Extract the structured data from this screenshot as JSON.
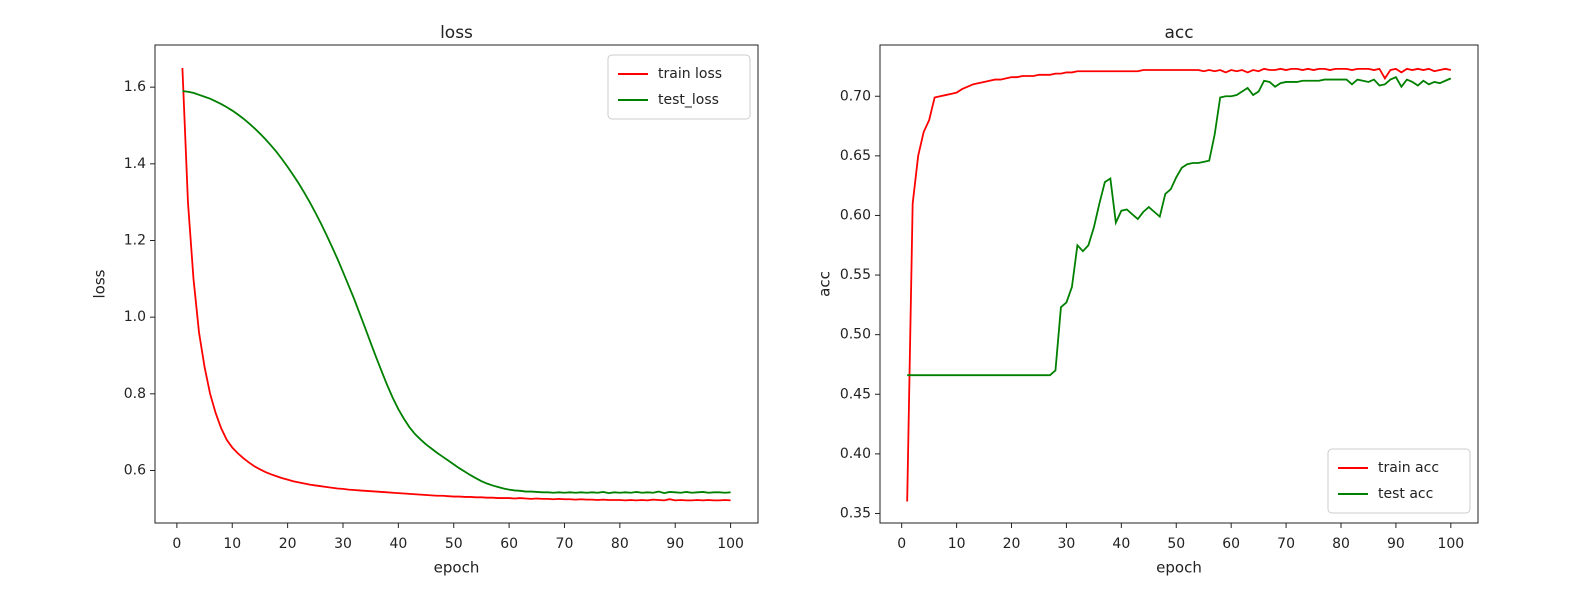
{
  "chart_data": [
    {
      "type": "line",
      "title": "loss",
      "xlabel": "epoch",
      "ylabel": "loss",
      "x": [
        1,
        2,
        3,
        4,
        5,
        6,
        7,
        8,
        9,
        10,
        11,
        12,
        13,
        14,
        15,
        16,
        17,
        18,
        19,
        20,
        21,
        22,
        23,
        24,
        25,
        26,
        27,
        28,
        29,
        30,
        31,
        32,
        33,
        34,
        35,
        36,
        37,
        38,
        39,
        40,
        41,
        42,
        43,
        44,
        45,
        46,
        47,
        48,
        49,
        50,
        51,
        52,
        53,
        54,
        55,
        56,
        57,
        58,
        59,
        60,
        61,
        62,
        63,
        64,
        65,
        66,
        67,
        68,
        69,
        70,
        71,
        72,
        73,
        74,
        75,
        76,
        77,
        78,
        79,
        80,
        81,
        82,
        83,
        84,
        85,
        86,
        87,
        88,
        89,
        90,
        91,
        92,
        93,
        94,
        95,
        96,
        97,
        98,
        99,
        100
      ],
      "series": [
        {
          "name": "train loss",
          "color": "#ff0000",
          "values": [
            1.65,
            1.3,
            1.1,
            0.96,
            0.87,
            0.8,
            0.75,
            0.71,
            0.68,
            0.66,
            0.645,
            0.632,
            0.621,
            0.611,
            0.603,
            0.596,
            0.59,
            0.585,
            0.58,
            0.576,
            0.572,
            0.569,
            0.566,
            0.563,
            0.561,
            0.559,
            0.557,
            0.555,
            0.553,
            0.552,
            0.55,
            0.549,
            0.548,
            0.547,
            0.546,
            0.545,
            0.544,
            0.543,
            0.542,
            0.541,
            0.54,
            0.539,
            0.538,
            0.537,
            0.536,
            0.535,
            0.534,
            0.534,
            0.533,
            0.532,
            0.532,
            0.531,
            0.531,
            0.53,
            0.53,
            0.529,
            0.529,
            0.528,
            0.528,
            0.528,
            0.527,
            0.528,
            0.527,
            0.526,
            0.527,
            0.526,
            0.526,
            0.525,
            0.526,
            0.525,
            0.525,
            0.524,
            0.525,
            0.524,
            0.524,
            0.523,
            0.524,
            0.523,
            0.523,
            0.523,
            0.522,
            0.523,
            0.522,
            0.523,
            0.522,
            0.524,
            0.523,
            0.522,
            0.525,
            0.522,
            0.523,
            0.522,
            0.522,
            0.523,
            0.522,
            0.523,
            0.522,
            0.522,
            0.523,
            0.522
          ]
        },
        {
          "name": "test_loss",
          "color": "#008000",
          "values": [
            1.59,
            1.588,
            1.585,
            1.58,
            1.575,
            1.57,
            1.563,
            1.556,
            1.548,
            1.539,
            1.529,
            1.518,
            1.506,
            1.493,
            1.479,
            1.464,
            1.448,
            1.431,
            1.412,
            1.392,
            1.371,
            1.349,
            1.325,
            1.3,
            1.273,
            1.245,
            1.215,
            1.184,
            1.152,
            1.118,
            1.083,
            1.048,
            1.01,
            0.972,
            0.933,
            0.895,
            0.858,
            0.822,
            0.789,
            0.76,
            0.735,
            0.713,
            0.695,
            0.681,
            0.668,
            0.657,
            0.646,
            0.636,
            0.626,
            0.616,
            0.606,
            0.597,
            0.588,
            0.58,
            0.572,
            0.566,
            0.561,
            0.557,
            0.553,
            0.55,
            0.548,
            0.547,
            0.545,
            0.545,
            0.544,
            0.543,
            0.543,
            0.542,
            0.543,
            0.542,
            0.543,
            0.542,
            0.543,
            0.542,
            0.543,
            0.542,
            0.544,
            0.541,
            0.543,
            0.542,
            0.543,
            0.542,
            0.544,
            0.542,
            0.543,
            0.542,
            0.545,
            0.541,
            0.544,
            0.543,
            0.542,
            0.544,
            0.542,
            0.543,
            0.544,
            0.542,
            0.543,
            0.543,
            0.542,
            0.543
          ]
        }
      ],
      "xlim": [
        -3.95,
        104.95
      ],
      "ylim": [
        0.463,
        1.71
      ],
      "xticks": [
        0,
        10,
        20,
        30,
        40,
        50,
        60,
        70,
        80,
        90,
        100
      ],
      "yticks": [
        0.6,
        0.8,
        {
          "value": 1,
          "label": "1.0"
        },
        1.2,
        1.4,
        1.6
      ],
      "legend": "upper right"
    },
    {
      "type": "line",
      "title": "acc",
      "xlabel": "epoch",
      "ylabel": "acc",
      "x": [
        1,
        2,
        3,
        4,
        5,
        6,
        7,
        8,
        9,
        10,
        11,
        12,
        13,
        14,
        15,
        16,
        17,
        18,
        19,
        20,
        21,
        22,
        23,
        24,
        25,
        26,
        27,
        28,
        29,
        30,
        31,
        32,
        33,
        34,
        35,
        36,
        37,
        38,
        39,
        40,
        41,
        42,
        43,
        44,
        45,
        46,
        47,
        48,
        49,
        50,
        51,
        52,
        53,
        54,
        55,
        56,
        57,
        58,
        59,
        60,
        61,
        62,
        63,
        64,
        65,
        66,
        67,
        68,
        69,
        70,
        71,
        72,
        73,
        74,
        75,
        76,
        77,
        78,
        79,
        80,
        81,
        82,
        83,
        84,
        85,
        86,
        87,
        88,
        89,
        90,
        91,
        92,
        93,
        94,
        95,
        96,
        97,
        98,
        99,
        100
      ],
      "series": [
        {
          "name": "train acc",
          "color": "#ff0000",
          "values": [
            0.36,
            0.61,
            0.65,
            0.67,
            0.68,
            0.699,
            0.7,
            0.701,
            0.702,
            0.703,
            0.706,
            0.708,
            0.71,
            0.711,
            0.712,
            0.713,
            0.714,
            0.714,
            0.715,
            0.716,
            0.716,
            0.717,
            0.717,
            0.717,
            0.718,
            0.718,
            0.718,
            0.719,
            0.719,
            0.72,
            0.72,
            0.721,
            0.721,
            0.721,
            0.721,
            0.721,
            0.721,
            0.721,
            0.721,
            0.721,
            0.721,
            0.721,
            0.721,
            0.722,
            0.722,
            0.722,
            0.722,
            0.722,
            0.722,
            0.722,
            0.722,
            0.722,
            0.722,
            0.722,
            0.721,
            0.722,
            0.721,
            0.722,
            0.72,
            0.722,
            0.721,
            0.722,
            0.72,
            0.722,
            0.721,
            0.723,
            0.722,
            0.722,
            0.723,
            0.722,
            0.723,
            0.723,
            0.722,
            0.723,
            0.722,
            0.723,
            0.723,
            0.722,
            0.723,
            0.723,
            0.723,
            0.722,
            0.723,
            0.723,
            0.723,
            0.722,
            0.723,
            0.715,
            0.722,
            0.723,
            0.72,
            0.723,
            0.722,
            0.723,
            0.722,
            0.723,
            0.721,
            0.722,
            0.723,
            0.722
          ]
        },
        {
          "name": "test acc",
          "color": "#008000",
          "values": [
            0.466,
            0.466,
            0.466,
            0.466,
            0.466,
            0.466,
            0.466,
            0.466,
            0.466,
            0.466,
            0.466,
            0.466,
            0.466,
            0.466,
            0.466,
            0.466,
            0.466,
            0.466,
            0.466,
            0.466,
            0.466,
            0.466,
            0.466,
            0.466,
            0.466,
            0.466,
            0.466,
            0.47,
            0.523,
            0.527,
            0.54,
            0.575,
            0.57,
            0.575,
            0.59,
            0.61,
            0.628,
            0.631,
            0.594,
            0.604,
            0.605,
            0.601,
            0.597,
            0.603,
            0.607,
            0.603,
            0.599,
            0.618,
            0.622,
            0.632,
            0.64,
            0.643,
            0.644,
            0.644,
            0.645,
            0.646,
            0.668,
            0.699,
            0.7,
            0.7,
            0.701,
            0.704,
            0.707,
            0.701,
            0.704,
            0.713,
            0.712,
            0.708,
            0.711,
            0.712,
            0.712,
            0.712,
            0.713,
            0.713,
            0.713,
            0.713,
            0.714,
            0.714,
            0.714,
            0.714,
            0.714,
            0.71,
            0.714,
            0.713,
            0.712,
            0.714,
            0.709,
            0.71,
            0.714,
            0.716,
            0.708,
            0.714,
            0.712,
            0.709,
            0.713,
            0.71,
            0.712,
            0.711,
            0.713,
            0.715
          ]
        }
      ],
      "xlim": [
        -3.95,
        104.95
      ],
      "ylim": [
        0.342,
        0.743
      ],
      "xticks": [
        0,
        10,
        20,
        30,
        40,
        50,
        60,
        70,
        80,
        90,
        100
      ],
      "yticks": [
        0.35,
        {
          "value": 0.4,
          "label": "0.40"
        },
        0.45,
        {
          "value": 0.5,
          "label": "0.50"
        },
        0.55,
        {
          "value": 0.6,
          "label": "0.60"
        },
        0.65,
        {
          "value": 0.7,
          "label": "0.70"
        }
      ],
      "legend": "lower right"
    }
  ]
}
